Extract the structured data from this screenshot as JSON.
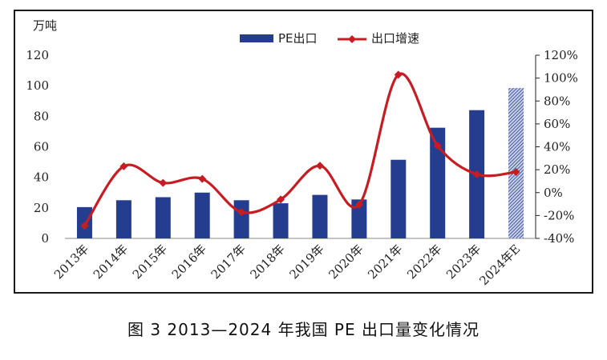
{
  "caption": "图 3  2013—2024 年我国 PE 出口量变化情况",
  "chart_data": {
    "type": "bar+line",
    "y_left_label": "万吨",
    "categories": [
      "2013年",
      "2014年",
      "2015年",
      "2016年",
      "2017年",
      "2018年",
      "2019年",
      "2020年",
      "2021年",
      "2022年",
      "2023年",
      "2024年E"
    ],
    "series": [
      {
        "name": "PE出口",
        "type": "bar",
        "axis": "left",
        "values": [
          20.5,
          25,
          27,
          30,
          25,
          23,
          28.5,
          25.5,
          51.5,
          72.5,
          84,
          98.5
        ],
        "color": "#253d8f",
        "forecast_color": "#7b88c2",
        "forecast_pattern": "hatched"
      },
      {
        "name": "出口增速",
        "type": "line",
        "axis": "right",
        "values": [
          -29,
          23,
          8.5,
          12,
          -17,
          -6,
          23.5,
          -10.5,
          103,
          41,
          16,
          18
        ],
        "color": "#c81c22"
      }
    ],
    "y_left": {
      "min": 0,
      "max": 120,
      "ticks": [
        0,
        20,
        40,
        60,
        80,
        100,
        120
      ]
    },
    "y_right": {
      "min": -40,
      "max": 120,
      "ticks": [
        -40,
        -20,
        0,
        20,
        40,
        60,
        80,
        100,
        120
      ],
      "tick_labels": [
        "-40%",
        "-20%",
        "0%",
        "20%",
        "40%",
        "60%",
        "80%",
        "100%",
        "120%"
      ]
    },
    "legend_position": "top-center",
    "grid": false
  }
}
